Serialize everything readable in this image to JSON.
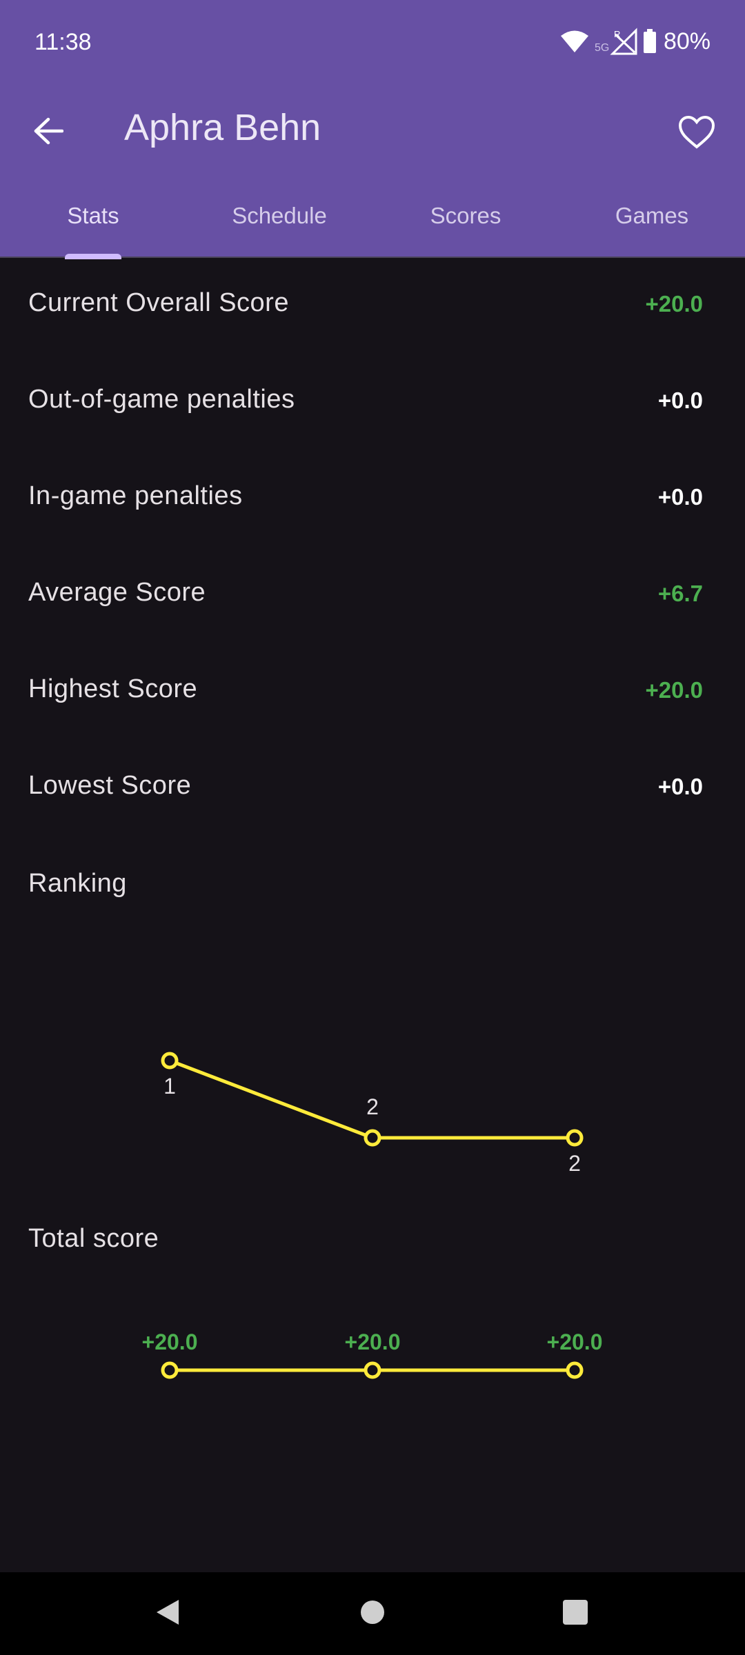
{
  "status": {
    "time": "11:38",
    "battery": "80%",
    "icons": [
      "wifi-icon",
      "cellular-5g-icon",
      "battery-icon"
    ]
  },
  "topbar": {
    "title": "Aphra Behn",
    "back_icon": "arrow-back-icon",
    "favorite_icon": "heart-outline-icon"
  },
  "tabs": [
    {
      "label": "Stats",
      "active": true
    },
    {
      "label": "Schedule",
      "active": false
    },
    {
      "label": "Scores",
      "active": false
    },
    {
      "label": "Games",
      "active": false
    }
  ],
  "stats": [
    {
      "label": "Current Overall Score",
      "value": "+20.0",
      "color": "#4caf50"
    },
    {
      "label": "Out-of-game penalties",
      "value": "+0.0",
      "color": "#ffffff"
    },
    {
      "label": "In-game penalties",
      "value": "+0.0",
      "color": "#ffffff"
    },
    {
      "label": "Average Score",
      "value": "+6.7",
      "color": "#4caf50"
    },
    {
      "label": "Highest Score",
      "value": "+20.0",
      "color": "#4caf50"
    },
    {
      "label": "Lowest Score",
      "value": "+0.0",
      "color": "#ffffff"
    }
  ],
  "ranking": {
    "title": "Ranking",
    "chart_data": {
      "type": "line",
      "x": [
        1,
        2,
        3
      ],
      "values": [
        1,
        2,
        2
      ],
      "labels": [
        "1",
        "2",
        "2"
      ],
      "line_color": "#ffeb3b",
      "label_color": "#e6e1e5",
      "inverted_y": true
    }
  },
  "total_score": {
    "title": "Total score",
    "chart_data": {
      "type": "line",
      "x": [
        1,
        2,
        3
      ],
      "values": [
        20.0,
        20.0,
        20.0
      ],
      "labels": [
        "+20.0",
        "+20.0",
        "+20.0"
      ],
      "line_color": "#ffeb3b",
      "label_color": "#4caf50"
    }
  },
  "navbar": {
    "icons": [
      "nav-back-icon",
      "nav-home-icon",
      "nav-recents-icon"
    ]
  }
}
